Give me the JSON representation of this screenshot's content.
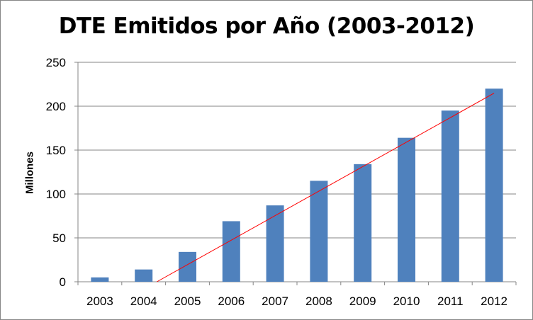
{
  "chart_data": {
    "type": "bar",
    "title": "DTE Emitidos por Año (2003-2012)",
    "xlabel": "",
    "ylabel": "Millones",
    "categories": [
      "2003",
      "2004",
      "2005",
      "2006",
      "2007",
      "2008",
      "2009",
      "2010",
      "2011",
      "2012"
    ],
    "series": [
      {
        "values": [
          5,
          14,
          34,
          69,
          87,
          115,
          134,
          164,
          195,
          220
        ],
        "color": "#4F81BD"
      }
    ],
    "trendline": {
      "type": "linear",
      "color": "#FF0000"
    },
    "ylim": [
      0,
      250
    ],
    "yticks": [
      0,
      50,
      100,
      150,
      200,
      250
    ],
    "grid": true,
    "legend": "none"
  }
}
